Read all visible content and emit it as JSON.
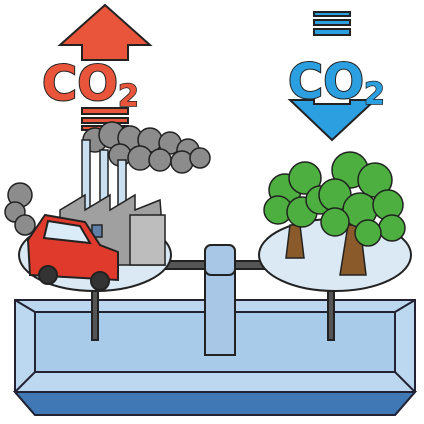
{
  "labels": {
    "emission": {
      "text": "CO",
      "subscript": "2"
    },
    "absorption": {
      "text": "CO",
      "subscript": "2"
    }
  }
}
